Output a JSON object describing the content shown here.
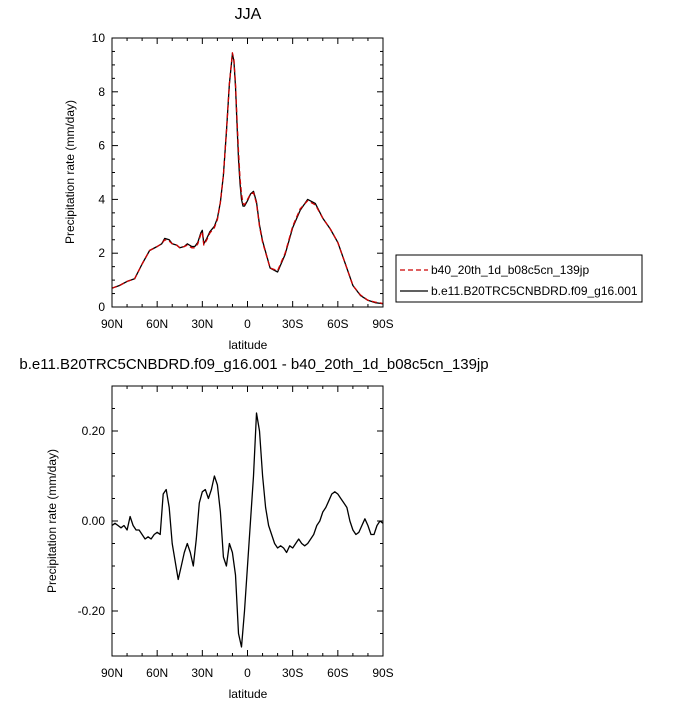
{
  "chart_data": [
    {
      "type": "line",
      "title": "JJA",
      "xlabel": "latitude",
      "ylabel": "Precipitation rate (mm/day)",
      "xlim": [
        90,
        -90
      ],
      "ylim": [
        0,
        10
      ],
      "x_ticks": [
        90,
        60,
        30,
        0,
        -30,
        -60,
        -90
      ],
      "x_tick_labels": [
        "90N",
        "60N",
        "30N",
        "0",
        "30S",
        "60S",
        "90S"
      ],
      "y_ticks": [
        0,
        2,
        4,
        6,
        8,
        10
      ],
      "y_tick_labels": [
        "0",
        "2",
        "4",
        "6",
        "8",
        "10"
      ],
      "legend_position": "right",
      "series": [
        {
          "name": "b40_20th_1d_b08c5cn_139jp",
          "color": "#cc0000",
          "dash": "dashed",
          "x": [
            90,
            85,
            80,
            75,
            70,
            65,
            60,
            57,
            55,
            52,
            50,
            47,
            45,
            42,
            40,
            37,
            35,
            33,
            31,
            30,
            29,
            27,
            25,
            22,
            20,
            18,
            16,
            14,
            12,
            10,
            9,
            8,
            7,
            6,
            5,
            4,
            3,
            2,
            1,
            0,
            -2,
            -4,
            -6,
            -8,
            -10,
            -15,
            -20,
            -25,
            -30,
            -35,
            -40,
            -45,
            -50,
            -55,
            -60,
            -65,
            -70,
            -75,
            -80,
            -85,
            -90
          ],
          "y": [
            0.7,
            0.8,
            0.95,
            1.05,
            1.6,
            2.1,
            2.25,
            2.35,
            2.5,
            2.45,
            2.35,
            2.3,
            2.2,
            2.25,
            2.3,
            2.2,
            2.2,
            2.35,
            2.7,
            2.8,
            2.3,
            2.5,
            2.75,
            2.95,
            3.25,
            3.9,
            4.9,
            6.5,
            8.3,
            9.45,
            9.2,
            8.3,
            7.0,
            5.8,
            4.8,
            4.2,
            3.85,
            3.8,
            3.9,
            4.0,
            4.2,
            4.25,
            3.85,
            3.0,
            2.4,
            1.45,
            1.35,
            2.0,
            3.0,
            3.65,
            3.95,
            3.8,
            3.3,
            2.9,
            2.4,
            1.6,
            0.8,
            0.45,
            0.25,
            0.18,
            0.13
          ]
        },
        {
          "name": "b.e11.B20TRC5CNBDRD.f09_g16.001",
          "color": "#000000",
          "dash": "solid",
          "x": [
            90,
            85,
            80,
            75,
            70,
            65,
            60,
            57,
            55,
            52,
            50,
            47,
            45,
            42,
            40,
            37,
            35,
            33,
            31,
            30,
            29,
            27,
            25,
            22,
            20,
            18,
            16,
            14,
            12,
            10,
            9,
            8,
            7,
            6,
            5,
            4,
            3,
            2,
            1,
            0,
            -2,
            -4,
            -6,
            -8,
            -10,
            -15,
            -20,
            -25,
            -30,
            -35,
            -40,
            -45,
            -50,
            -55,
            -60,
            -65,
            -70,
            -75,
            -80,
            -85,
            -90
          ],
          "y": [
            0.7,
            0.8,
            0.95,
            1.05,
            1.6,
            2.1,
            2.25,
            2.35,
            2.55,
            2.5,
            2.35,
            2.3,
            2.2,
            2.25,
            2.35,
            2.25,
            2.25,
            2.4,
            2.75,
            2.85,
            2.35,
            2.55,
            2.8,
            3.0,
            3.3,
            3.9,
            4.9,
            6.5,
            8.3,
            9.4,
            9.15,
            8.2,
            6.8,
            5.5,
            4.6,
            4.0,
            3.75,
            3.75,
            3.85,
            3.95,
            4.2,
            4.3,
            3.9,
            3.05,
            2.45,
            1.45,
            1.3,
            1.95,
            2.95,
            3.6,
            4.0,
            3.85,
            3.3,
            2.9,
            2.4,
            1.6,
            0.8,
            0.43,
            0.25,
            0.16,
            0.12
          ]
        }
      ]
    },
    {
      "type": "line",
      "title": "b.e11.B20TRC5CNBDRD.f09_g16.001 - b40_20th_1d_b08c5cn_139jp",
      "xlabel": "latitude",
      "ylabel": "Precipitation rate (mm/day)",
      "xlim": [
        90,
        -90
      ],
      "ylim": [
        -0.3,
        0.3
      ],
      "x_ticks": [
        90,
        60,
        30,
        0,
        -30,
        -60,
        -90
      ],
      "x_tick_labels": [
        "90N",
        "60N",
        "30N",
        "0",
        "30S",
        "60S",
        "90S"
      ],
      "y_ticks": [
        0.2,
        0.0,
        -0.2
      ],
      "y_tick_labels": [
        "0.20",
        "0.00",
        "-0.20"
      ],
      "series": [
        {
          "name": "",
          "color": "#000000",
          "dash": "solid",
          "x": [
            90,
            88,
            86,
            84,
            82,
            80,
            78,
            76,
            74,
            72,
            70,
            68,
            66,
            64,
            62,
            60,
            58,
            56,
            54,
            52,
            50,
            48,
            46,
            44,
            42,
            40,
            38,
            36,
            34,
            32,
            30,
            28,
            26,
            24,
            22,
            20,
            18,
            16,
            14,
            12,
            10,
            8,
            6,
            4,
            2,
            0,
            -2,
            -4,
            -6,
            -8,
            -10,
            -12,
            -14,
            -16,
            -18,
            -20,
            -22,
            -24,
            -26,
            -28,
            -30,
            -32,
            -34,
            -36,
            -38,
            -40,
            -42,
            -44,
            -46,
            -48,
            -50,
            -52,
            -54,
            -56,
            -58,
            -60,
            -62,
            -64,
            -66,
            -68,
            -70,
            -72,
            -74,
            -76,
            -78,
            -80,
            -82,
            -84,
            -86,
            -88,
            -90
          ],
          "y": [
            -0.01,
            -0.005,
            -0.01,
            -0.015,
            -0.01,
            -0.02,
            0.01,
            -0.01,
            -0.02,
            -0.02,
            -0.03,
            -0.04,
            -0.035,
            -0.04,
            -0.03,
            -0.025,
            -0.03,
            0.06,
            0.07,
            0.03,
            -0.05,
            -0.09,
            -0.13,
            -0.1,
            -0.07,
            -0.05,
            -0.07,
            -0.1,
            -0.04,
            0.04,
            0.065,
            0.07,
            0.05,
            0.07,
            0.1,
            0.08,
            0.02,
            -0.08,
            -0.1,
            -0.05,
            -0.07,
            -0.12,
            -0.25,
            -0.28,
            -0.2,
            -0.1,
            0.0,
            0.1,
            0.24,
            0.2,
            0.1,
            0.03,
            -0.01,
            -0.03,
            -0.05,
            -0.06,
            -0.055,
            -0.06,
            -0.07,
            -0.055,
            -0.06,
            -0.05,
            -0.04,
            -0.05,
            -0.055,
            -0.05,
            -0.04,
            -0.03,
            -0.01,
            0.0,
            0.02,
            0.03,
            0.045,
            0.06,
            0.065,
            0.06,
            0.05,
            0.04,
            0.03,
            0.0,
            -0.02,
            -0.03,
            -0.025,
            -0.01,
            0.005,
            -0.01,
            -0.03,
            -0.03,
            -0.01,
            0.0,
            -0.005
          ]
        }
      ]
    }
  ]
}
